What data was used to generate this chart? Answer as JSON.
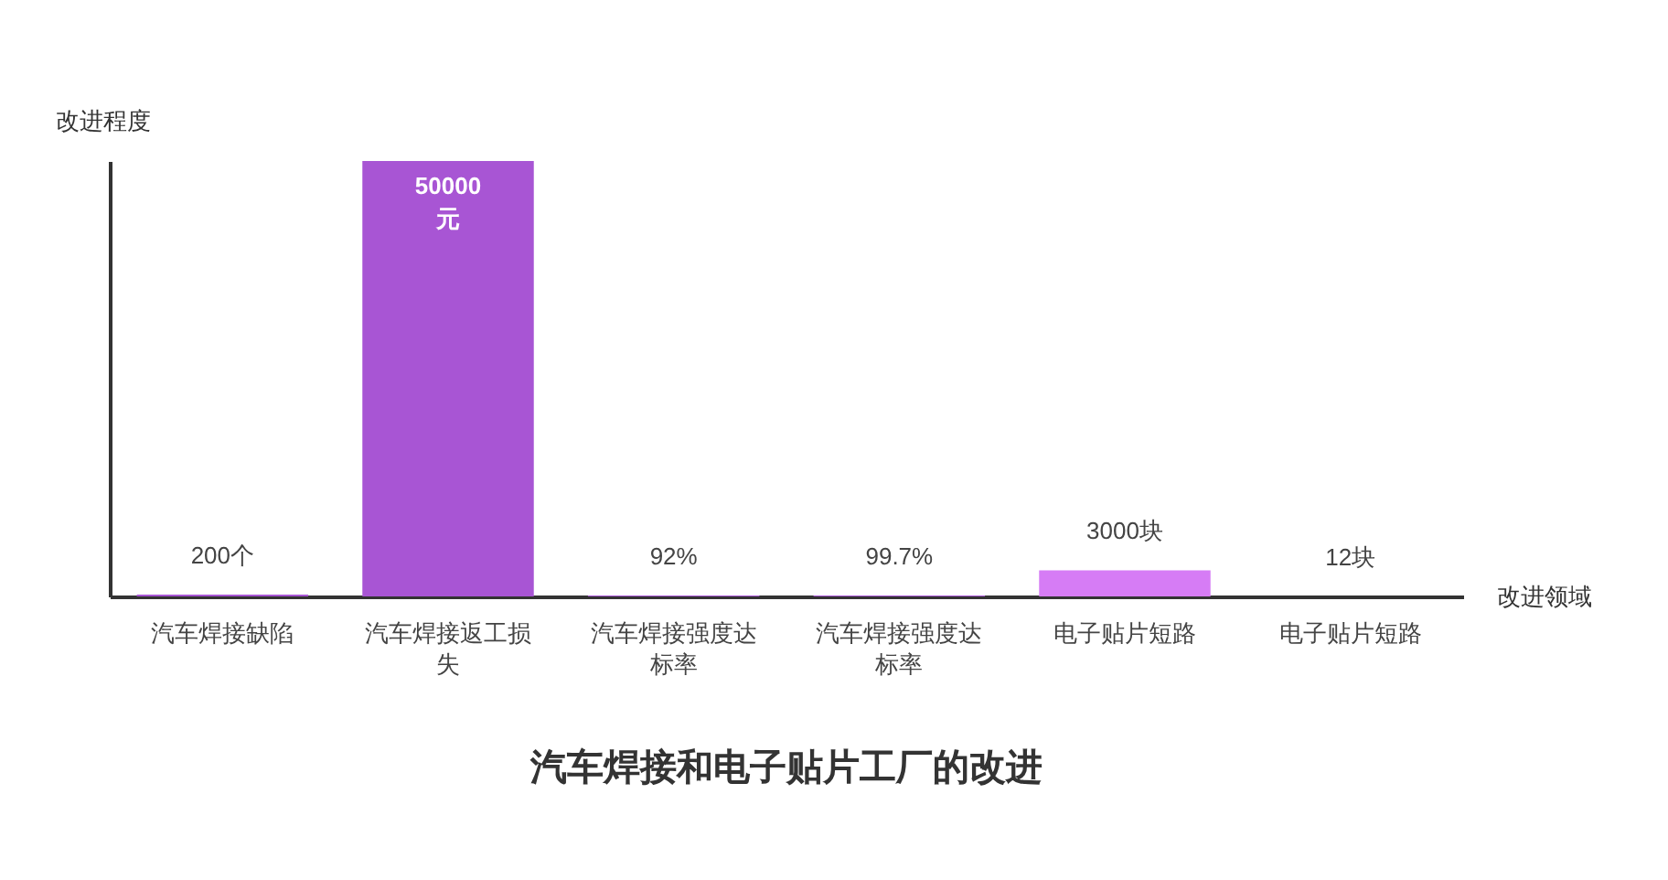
{
  "chart_data": {
    "type": "bar",
    "title": "汽车焊接和电子贴片工厂的改进",
    "xlabel": "改进领域",
    "ylabel": "改进程度",
    "categories": [
      "汽车焊接缺陷",
      "汽车焊接返工损失",
      "汽车焊接强度达标率",
      "汽车焊接强度达标率",
      "电子贴片短路",
      "电子贴片短路"
    ],
    "values": [
      200,
      50000,
      92,
      99.7,
      3000,
      12
    ],
    "value_labels": [
      "200个",
      "50000元",
      "92%",
      "99.7%",
      "3000块",
      "12块"
    ],
    "colors": [
      "#a855d4",
      "#a855d4",
      "#a855d4",
      "#a855d4",
      "#d67cf5",
      "#d67cf5"
    ],
    "grid": false
  }
}
